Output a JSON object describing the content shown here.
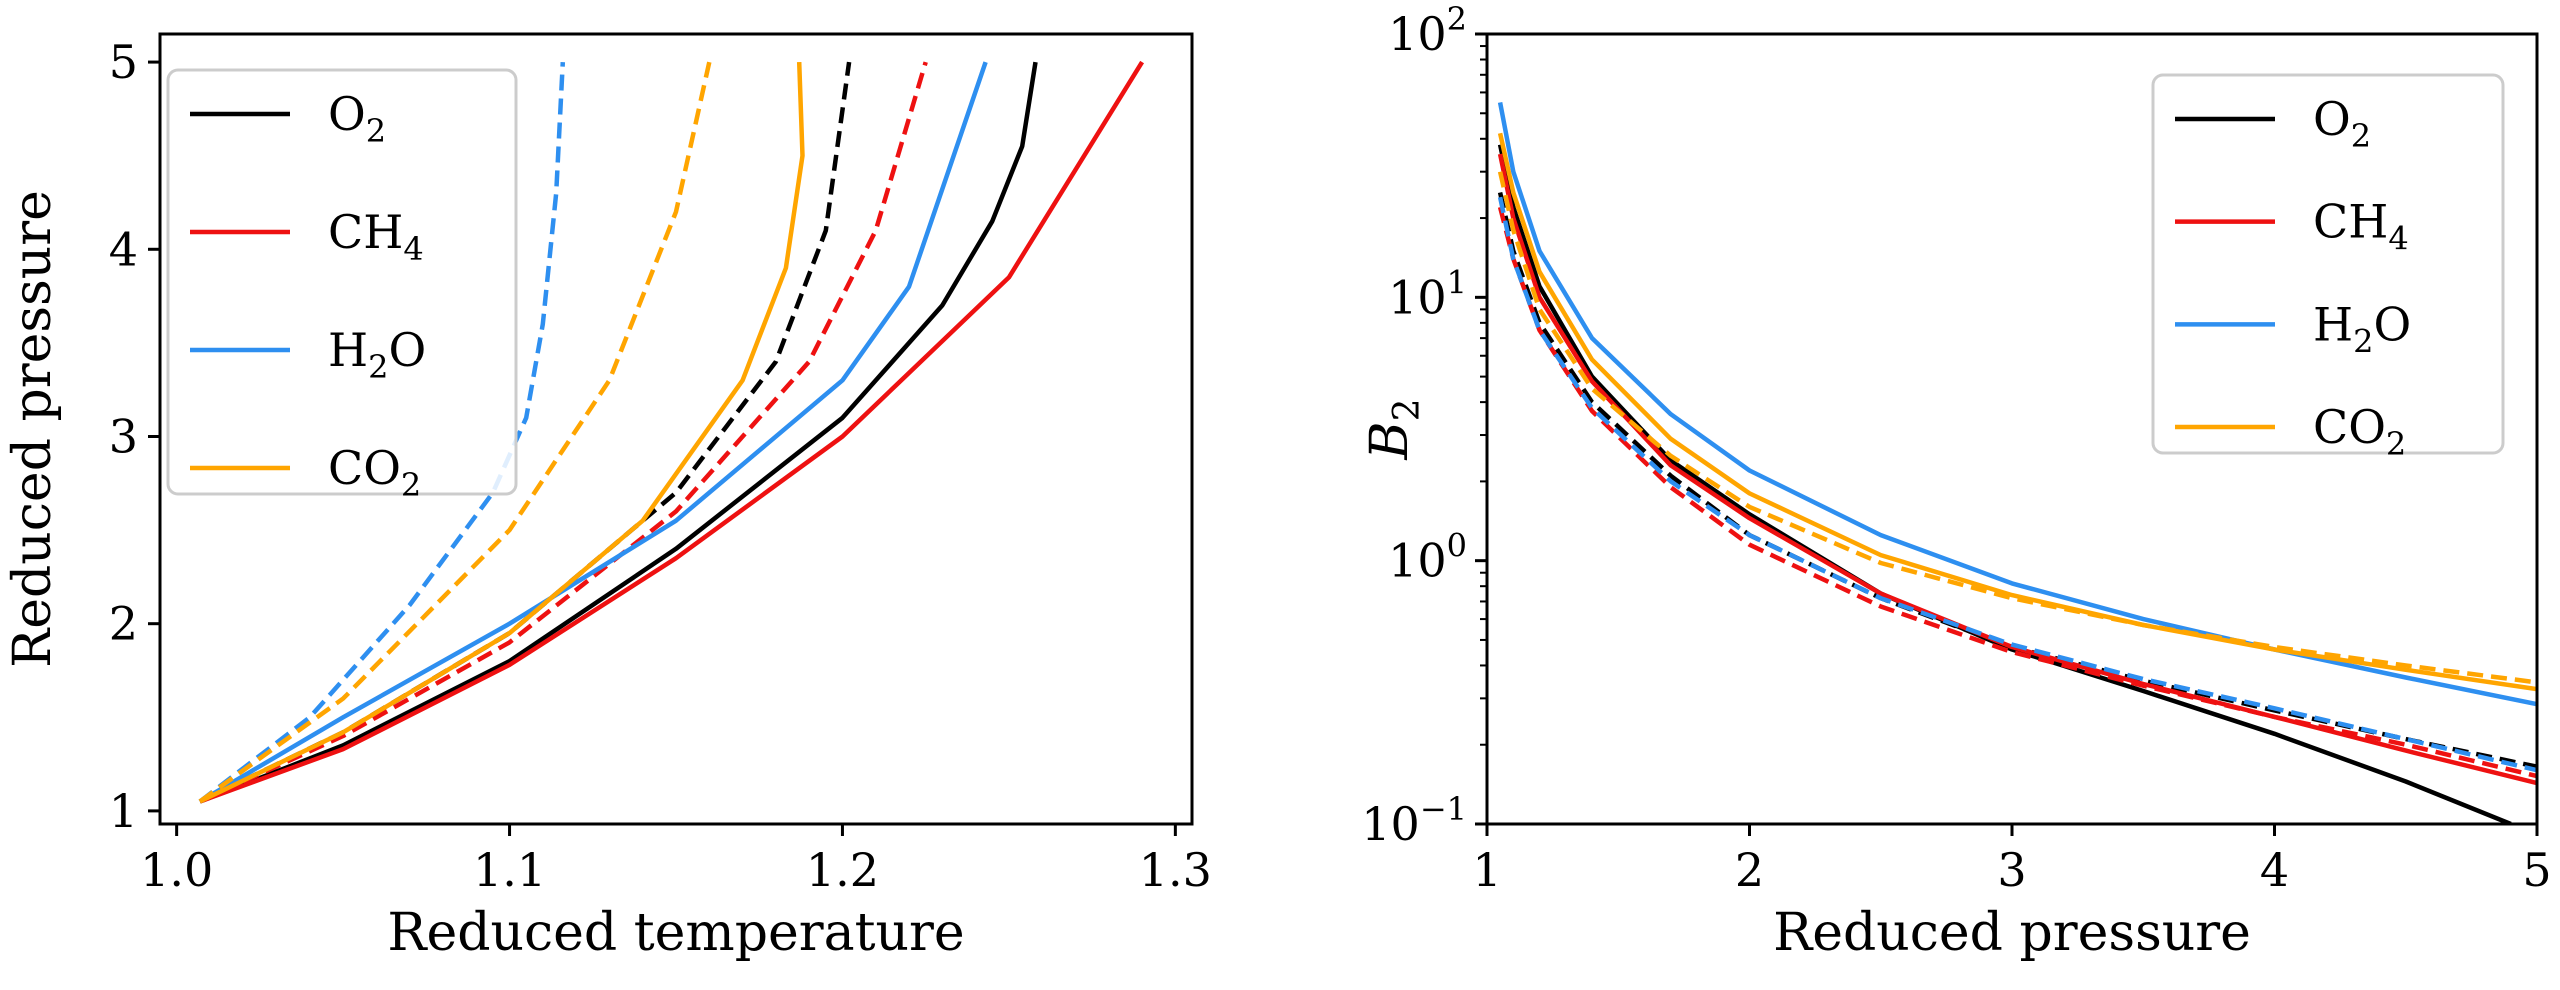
{
  "chart_data": [
    {
      "type": "line",
      "xlabel": "Reduced temperature",
      "ylabel": "Reduced pressure",
      "xlim": [
        0.995,
        1.305
      ],
      "ylim": [
        0.93,
        5.15
      ],
      "xticks": [
        1.0,
        1.1,
        1.2,
        1.3
      ],
      "xtick_labels": [
        "1.0",
        "1.1",
        "1.2",
        "1.3"
      ],
      "yticks": [
        1,
        2,
        3,
        4,
        5
      ],
      "ytick_labels": [
        "1",
        "2",
        "3",
        "4",
        "5"
      ],
      "legend_position": "upper-left",
      "series": [
        {
          "name": "O2",
          "label_main": "O",
          "label_sub": "2",
          "label_after": "",
          "color": "#000000",
          "style": "solid",
          "points": [
            [
              1.007,
              1.05
            ],
            [
              1.05,
              1.35
            ],
            [
              1.1,
              1.8
            ],
            [
              1.15,
              2.4
            ],
            [
              1.2,
              3.1
            ],
            [
              1.23,
              3.7
            ],
            [
              1.245,
              4.15
            ],
            [
              1.254,
              4.55
            ],
            [
              1.258,
              5.0
            ]
          ]
        },
        {
          "name": "O2",
          "label_main": "O",
          "label_sub": "2",
          "label_after": "",
          "color": "#000000",
          "style": "dashed",
          "points": [
            [
              1.007,
              1.05
            ],
            [
              1.05,
              1.42
            ],
            [
              1.1,
              1.95
            ],
            [
              1.15,
              2.7
            ],
            [
              1.18,
              3.4
            ],
            [
              1.195,
              4.1
            ],
            [
              1.202,
              5.0
            ]
          ]
        },
        {
          "name": "CH4",
          "label_main": "CH",
          "label_sub": "4",
          "label_after": "",
          "color": "#ee1111",
          "style": "solid",
          "points": [
            [
              1.007,
              1.05
            ],
            [
              1.05,
              1.33
            ],
            [
              1.1,
              1.78
            ],
            [
              1.15,
              2.35
            ],
            [
              1.2,
              3.0
            ],
            [
              1.25,
              3.85
            ],
            [
              1.29,
              5.0
            ]
          ]
        },
        {
          "name": "CH4",
          "label_main": "CH",
          "label_sub": "4",
          "label_after": "",
          "color": "#ee1111",
          "style": "dashed",
          "points": [
            [
              1.007,
              1.05
            ],
            [
              1.05,
              1.4
            ],
            [
              1.1,
              1.9
            ],
            [
              1.15,
              2.6
            ],
            [
              1.19,
              3.4
            ],
            [
              1.21,
              4.1
            ],
            [
              1.225,
              5.0
            ]
          ]
        },
        {
          "name": "H2O",
          "label_main": "H",
          "label_sub": "2",
          "label_after": "O",
          "color": "#2e8ff0",
          "style": "solid",
          "points": [
            [
              1.007,
              1.05
            ],
            [
              1.05,
              1.5
            ],
            [
              1.1,
              2.0
            ],
            [
              1.15,
              2.55
            ],
            [
              1.2,
              3.3
            ],
            [
              1.22,
              3.8
            ],
            [
              1.243,
              5.0
            ]
          ]
        },
        {
          "name": "H2O",
          "label_main": "H",
          "label_sub": "2",
          "label_after": "O",
          "color": "#2e8ff0",
          "style": "dashed",
          "points": [
            [
              1.007,
              1.05
            ],
            [
              1.04,
              1.5
            ],
            [
              1.07,
              2.1
            ],
            [
              1.095,
              2.7
            ],
            [
              1.105,
              3.1
            ],
            [
              1.11,
              3.6
            ],
            [
              1.114,
              4.3
            ],
            [
              1.116,
              5.0
            ]
          ]
        },
        {
          "name": "CO2",
          "label_main": "CO",
          "label_sub": "2",
          "label_after": "",
          "color": "#ffa500",
          "style": "solid",
          "points": [
            [
              1.007,
              1.05
            ],
            [
              1.05,
              1.42
            ],
            [
              1.1,
              1.95
            ],
            [
              1.14,
              2.55
            ],
            [
              1.17,
              3.3
            ],
            [
              1.183,
              3.9
            ],
            [
              1.188,
              4.5
            ],
            [
              1.187,
              5.0
            ]
          ]
        },
        {
          "name": "CO2",
          "label_main": "CO",
          "label_sub": "2",
          "label_after": "",
          "color": "#ffa500",
          "style": "dashed",
          "points": [
            [
              1.007,
              1.05
            ],
            [
              1.05,
              1.6
            ],
            [
              1.1,
              2.5
            ],
            [
              1.13,
              3.3
            ],
            [
              1.15,
              4.2
            ],
            [
              1.16,
              5.0
            ]
          ]
        }
      ]
    },
    {
      "type": "line",
      "xlabel": "Reduced pressure",
      "ylabel": "B",
      "ylabel_sub": "2",
      "xlim": [
        1,
        5
      ],
      "ylim": [
        0.1,
        100
      ],
      "yscale": "log",
      "xticks": [
        1,
        2,
        3,
        4,
        5
      ],
      "xtick_labels": [
        "1",
        "2",
        "3",
        "4",
        "5"
      ],
      "yticks": [
        0.1,
        1,
        10,
        100
      ],
      "ytick_base": "10",
      "ytick_exponents": [
        "−1",
        "0",
        "1",
        "2"
      ],
      "legend_position": "upper-right",
      "series": [
        {
          "name": "O2",
          "label_main": "O",
          "label_sub": "2",
          "label_after": "",
          "color": "#000000",
          "style": "solid",
          "points": [
            [
              1.05,
              38
            ],
            [
              1.1,
              22
            ],
            [
              1.2,
              11
            ],
            [
              1.4,
              5
            ],
            [
              1.7,
              2.4
            ],
            [
              2,
              1.5
            ],
            [
              2.5,
              0.75
            ],
            [
              3,
              0.46
            ],
            [
              3.5,
              0.32
            ],
            [
              4,
              0.22
            ],
            [
              4.5,
              0.145
            ],
            [
              4.9,
              0.1
            ]
          ]
        },
        {
          "name": "O2",
          "label_main": "O",
          "label_sub": "2",
          "label_after": "",
          "color": "#000000",
          "style": "dashed",
          "points": [
            [
              1.05,
              25
            ],
            [
              1.1,
              15
            ],
            [
              1.2,
              8
            ],
            [
              1.4,
              4
            ],
            [
              1.7,
              2.1
            ],
            [
              2,
              1.25
            ],
            [
              2.5,
              0.72
            ],
            [
              3,
              0.47
            ],
            [
              3.5,
              0.35
            ],
            [
              4,
              0.27
            ],
            [
              4.5,
              0.21
            ],
            [
              5,
              0.165
            ]
          ]
        },
        {
          "name": "CH4",
          "label_main": "CH",
          "label_sub": "4",
          "label_after": "",
          "color": "#ee1111",
          "style": "solid",
          "points": [
            [
              1.05,
              35
            ],
            [
              1.1,
              20
            ],
            [
              1.2,
              10
            ],
            [
              1.4,
              4.8
            ],
            [
              1.7,
              2.3
            ],
            [
              2,
              1.45
            ],
            [
              2.5,
              0.75
            ],
            [
              3,
              0.47
            ],
            [
              3.5,
              0.34
            ],
            [
              4,
              0.255
            ],
            [
              4.5,
              0.19
            ],
            [
              5,
              0.143
            ]
          ]
        },
        {
          "name": "CH4",
          "label_main": "CH",
          "label_sub": "4",
          "label_after": "",
          "color": "#ee1111",
          "style": "dashed",
          "points": [
            [
              1.05,
              22
            ],
            [
              1.1,
              14
            ],
            [
              1.2,
              7.5
            ],
            [
              1.4,
              3.7
            ],
            [
              1.7,
              1.9
            ],
            [
              2,
              1.15
            ],
            [
              2.5,
              0.67
            ],
            [
              3,
              0.45
            ],
            [
              3.5,
              0.335
            ],
            [
              4,
              0.255
            ],
            [
              4.5,
              0.2
            ],
            [
              5,
              0.152
            ]
          ]
        },
        {
          "name": "H2O",
          "label_main": "H",
          "label_sub": "2",
          "label_after": "O",
          "color": "#2e8ff0",
          "style": "solid",
          "points": [
            [
              1.05,
              55
            ],
            [
              1.1,
              30
            ],
            [
              1.2,
              15
            ],
            [
              1.4,
              7
            ],
            [
              1.7,
              3.6
            ],
            [
              2,
              2.2
            ],
            [
              2.5,
              1.25
            ],
            [
              3,
              0.82
            ],
            [
              3.5,
              0.6
            ],
            [
              4,
              0.46
            ],
            [
              4.5,
              0.36
            ],
            [
              5,
              0.285
            ]
          ]
        },
        {
          "name": "H2O",
          "label_main": "H",
          "label_sub": "2",
          "label_after": "O",
          "color": "#2e8ff0",
          "style": "dashed",
          "points": [
            [
              1.05,
              24
            ],
            [
              1.1,
              14
            ],
            [
              1.2,
              7.5
            ],
            [
              1.4,
              3.8
            ],
            [
              1.7,
              2
            ],
            [
              2,
              1.25
            ],
            [
              2.5,
              0.72
            ],
            [
              3,
              0.48
            ],
            [
              3.5,
              0.355
            ],
            [
              4,
              0.275
            ],
            [
              4.5,
              0.21
            ],
            [
              5,
              0.16
            ]
          ]
        },
        {
          "name": "CO2",
          "label_main": "CO",
          "label_sub": "2",
          "label_after": "",
          "color": "#ffa500",
          "style": "solid",
          "points": [
            [
              1.05,
              42
            ],
            [
              1.1,
              25
            ],
            [
              1.2,
              12.5
            ],
            [
              1.4,
              5.8
            ],
            [
              1.7,
              2.9
            ],
            [
              2,
              1.8
            ],
            [
              2.5,
              1.05
            ],
            [
              3,
              0.74
            ],
            [
              3.5,
              0.57
            ],
            [
              4,
              0.46
            ],
            [
              4.5,
              0.385
            ],
            [
              5,
              0.325
            ]
          ]
        },
        {
          "name": "CO2",
          "label_main": "CO",
          "label_sub": "2",
          "label_after": "",
          "color": "#ffa500",
          "style": "dashed",
          "points": [
            [
              1.05,
              30
            ],
            [
              1.1,
              18
            ],
            [
              1.2,
              9
            ],
            [
              1.4,
              4.5
            ],
            [
              1.7,
              2.5
            ],
            [
              2,
              1.6
            ],
            [
              2.5,
              0.98
            ],
            [
              3,
              0.72
            ],
            [
              3.5,
              0.57
            ],
            [
              4,
              0.47
            ],
            [
              4.5,
              0.4
            ],
            [
              5,
              0.345
            ]
          ]
        }
      ]
    }
  ]
}
